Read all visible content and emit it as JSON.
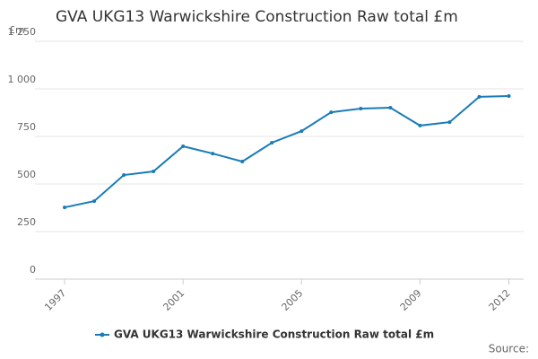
{
  "chart_data": {
    "type": "line",
    "title": "GVA UKG13 Warwickshire Construction Raw total £m",
    "y_label": "£m",
    "source": "Source:",
    "x": [
      1997,
      1998,
      1999,
      2000,
      2001,
      2002,
      2003,
      2004,
      2005,
      2006,
      2007,
      2008,
      2009,
      2010,
      2011,
      2012
    ],
    "series": [
      {
        "name": "GVA UKG13 Warwickshire Construction Raw total £m",
        "color": "#1a7bb9",
        "values": [
          377,
          410,
          547,
          566,
          698,
          660,
          618,
          717,
          778,
          877,
          896,
          901,
          807,
          825,
          958,
          962
        ]
      }
    ],
    "xlim": [
      1996,
      2012.5
    ],
    "xticks": [
      1997,
      2001,
      2005,
      2009,
      2012
    ],
    "ylim": [
      0,
      1250
    ],
    "yticks": [
      0,
      250,
      500,
      750,
      {
        "value": 1000,
        "label": "1 000"
      },
      {
        "value": 1250,
        "label": "1 250"
      }
    ],
    "grid": true,
    "legend": "bottom"
  }
}
